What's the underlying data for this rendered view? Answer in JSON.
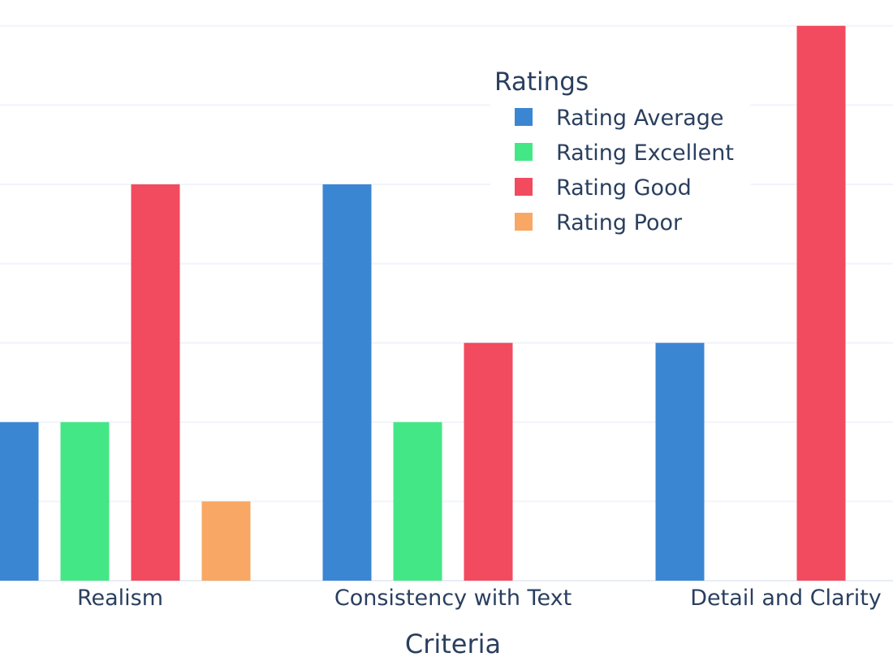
{
  "chart_data": {
    "type": "bar",
    "categories": [
      "Realism",
      "Consistency with Text",
      "Detail and Clarity"
    ],
    "series": [
      {
        "name": "Rating Average",
        "values": [
          2,
          5,
          3
        ],
        "color": "#3b86d3"
      },
      {
        "name": "Rating Excellent",
        "values": [
          2,
          2,
          0
        ],
        "color": "#44e786"
      },
      {
        "name": "Rating Good",
        "values": [
          5,
          3,
          7
        ],
        "color": "#f24a5e"
      },
      {
        "name": "Rating Poor",
        "values": [
          1,
          0,
          0
        ],
        "color": "#f8a764"
      }
    ],
    "title": "",
    "xlabel": "Criteria",
    "ylabel": "",
    "ylim": [
      0,
      7
    ],
    "grid": true,
    "legend_title": "Ratings",
    "legend_position": "top-right"
  }
}
